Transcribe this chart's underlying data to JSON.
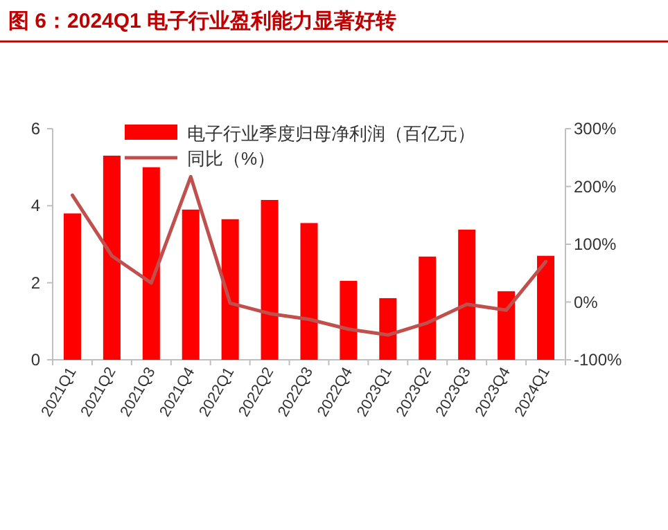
{
  "chart_data": {
    "type": "bar",
    "title": "图 6：2024Q1 电子行业盈利能力显著好转",
    "categories": [
      "2021Q1",
      "2021Q2",
      "2021Q3",
      "2021Q4",
      "2022Q1",
      "2022Q2",
      "2022Q3",
      "2022Q4",
      "2023Q1",
      "2023Q2",
      "2023Q3",
      "2023Q4",
      "2024Q1"
    ],
    "series": [
      {
        "name": "电子行业季度归母净利润（百亿元）",
        "color": "#ff0000",
        "values": [
          3.8,
          5.3,
          5.0,
          3.9,
          3.65,
          4.15,
          3.55,
          2.05,
          1.6,
          2.68,
          3.38,
          1.78,
          2.7
        ]
      },
      {
        "name": "同比（%）",
        "type": "line",
        "axis": "y2",
        "color": "#c0504d",
        "values": [
          185,
          80,
          33,
          217,
          -2,
          -20,
          -30,
          -47,
          -57,
          -36,
          -4,
          -14,
          70
        ]
      }
    ],
    "ylim": [
      0,
      6
    ],
    "yticks": [
      0,
      2,
      4,
      6
    ],
    "y2lim": [
      -100,
      300
    ],
    "y2ticks": [
      {
        "value": -100,
        "label": "-100%"
      },
      {
        "value": 0,
        "label": "0%"
      },
      {
        "value": 100,
        "label": "100%"
      },
      {
        "value": 200,
        "label": "200%"
      },
      {
        "value": 300,
        "label": "300%"
      }
    ],
    "legend": "top",
    "grid": false,
    "marker": "none",
    "line_style": "solid"
  }
}
